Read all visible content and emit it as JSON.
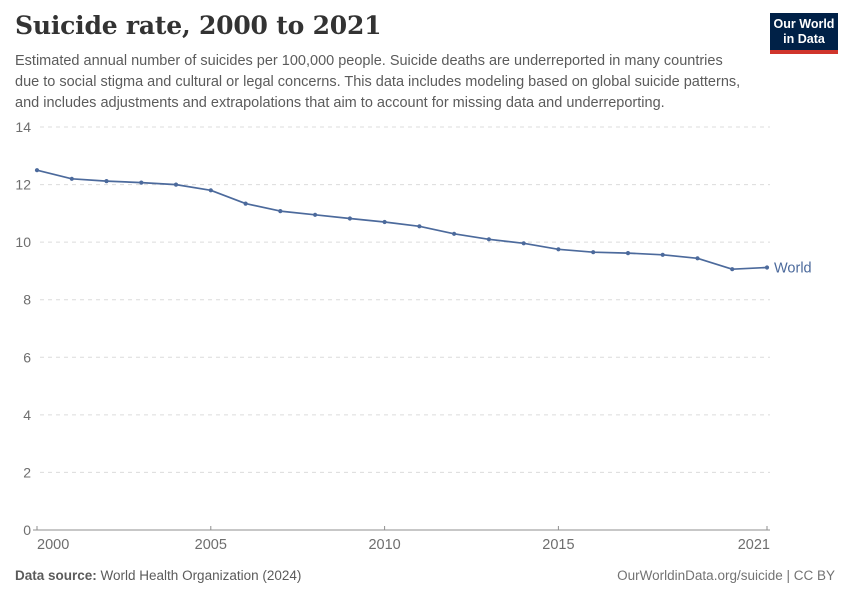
{
  "header": {
    "title": "Suicide rate, 2000 to 2021",
    "subtitle_lines": [
      "Estimated annual number of suicides per 100,000 people. Suicide deaths are underreported in many countries",
      "due to social stigma and cultural or legal concerns. This data includes modeling based on global suicide patterns,",
      "and includes adjustments and extrapolations that aim to account for missing data and underreporting."
    ],
    "logo": {
      "line1": "Our World",
      "line2": "in Data"
    }
  },
  "chart_data": {
    "type": "line",
    "title": "Suicide rate, 2000 to 2021",
    "xlabel": "",
    "ylabel": "",
    "x": [
      2000,
      2001,
      2002,
      2003,
      2004,
      2005,
      2006,
      2007,
      2008,
      2009,
      2010,
      2011,
      2012,
      2013,
      2014,
      2015,
      2016,
      2017,
      2018,
      2019,
      2020,
      2021
    ],
    "series": [
      {
        "name": "World",
        "values": [
          12.5,
          12.2,
          12.12,
          12.07,
          12.0,
          11.8,
          11.34,
          11.08,
          10.95,
          10.82,
          10.7,
          10.55,
          10.29,
          10.1,
          9.96,
          9.75,
          9.65,
          9.62,
          9.56,
          9.44,
          9.06,
          9.12
        ]
      }
    ],
    "xlim": [
      2000,
      2021
    ],
    "ylim": [
      0,
      14
    ],
    "xticks": [
      2000,
      2005,
      2010,
      2015,
      2021
    ],
    "yticks": [
      0,
      2,
      4,
      6,
      8,
      10,
      12,
      14
    ],
    "grid": "horizontal-dashed",
    "legend": "end-of-line-label"
  },
  "footer": {
    "source_label": "Data source:",
    "source_value": " World Health Organization (2024)",
    "attribution": "OurWorldinData.org/suicide | CC BY"
  },
  "colors": {
    "accent": "#4c6a9c",
    "logo_bg": "#002147",
    "logo_red": "#d0352c",
    "grid": "#dcdcdc",
    "axis": "#8f8f8f",
    "tick_label": "#6e6e6e",
    "text": "#5b5b5b",
    "title": "#333333"
  }
}
